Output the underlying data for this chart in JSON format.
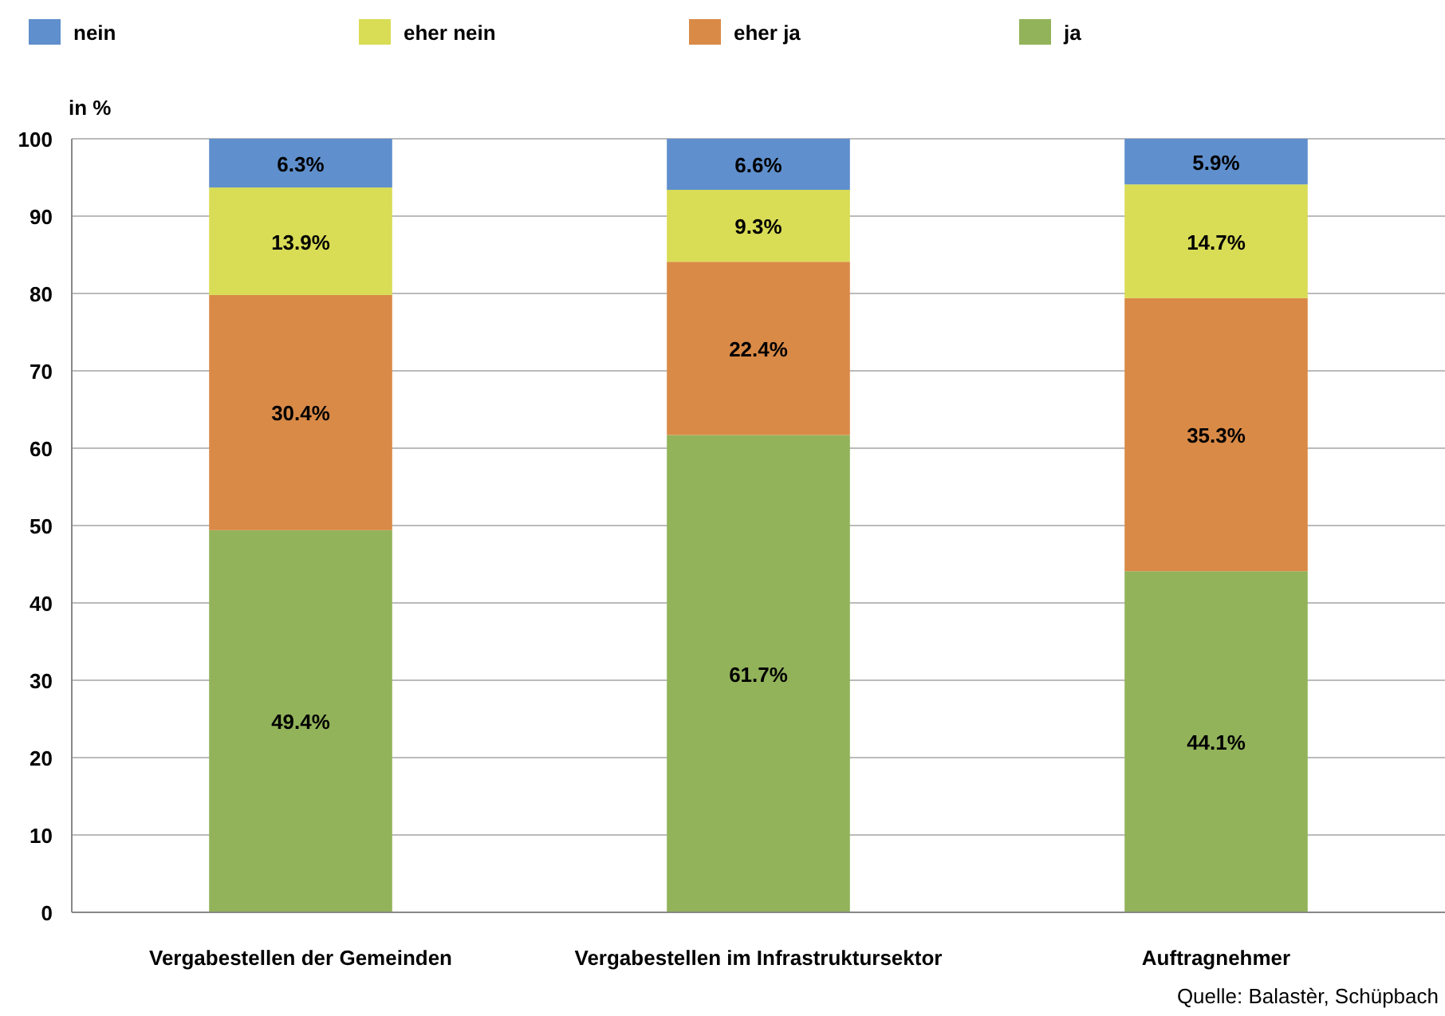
{
  "chart_data": {
    "type": "bar",
    "stacked": true,
    "ylabel": "in %",
    "categories": [
      "Vergabestellen der Gemeinden",
      "Vergabestellen im Infrastruktursektor",
      "Auftragnehmer"
    ],
    "series": [
      {
        "name": "ja",
        "color": "#92b35a",
        "values": [
          49.4,
          61.7,
          44.1
        ],
        "value_labels": [
          "49.4%",
          "61.7%",
          "44.1%"
        ]
      },
      {
        "name": "eher ja",
        "color": "#d98a47",
        "values": [
          30.4,
          22.4,
          35.3
        ],
        "value_labels": [
          "30.4%",
          "22.4%",
          "35.3%"
        ]
      },
      {
        "name": "eher nein",
        "color": "#d9dc55",
        "values": [
          13.9,
          9.3,
          14.7
        ],
        "value_labels": [
          "13.9%",
          "9.3%",
          "14.7%"
        ]
      },
      {
        "name": "nein",
        "color": "#5f8fcc",
        "values": [
          6.3,
          6.6,
          5.9
        ],
        "value_labels": [
          "6.3%",
          "6.6%",
          "5.9%"
        ]
      }
    ],
    "ylim": [
      0,
      100
    ],
    "yticks": [
      0,
      10,
      20,
      30,
      40,
      50,
      60,
      70,
      80,
      90,
      100
    ],
    "grid": "y",
    "legend": "top",
    "annotations": [
      "Quelle: Balastèr, Schüpbach"
    ]
  }
}
